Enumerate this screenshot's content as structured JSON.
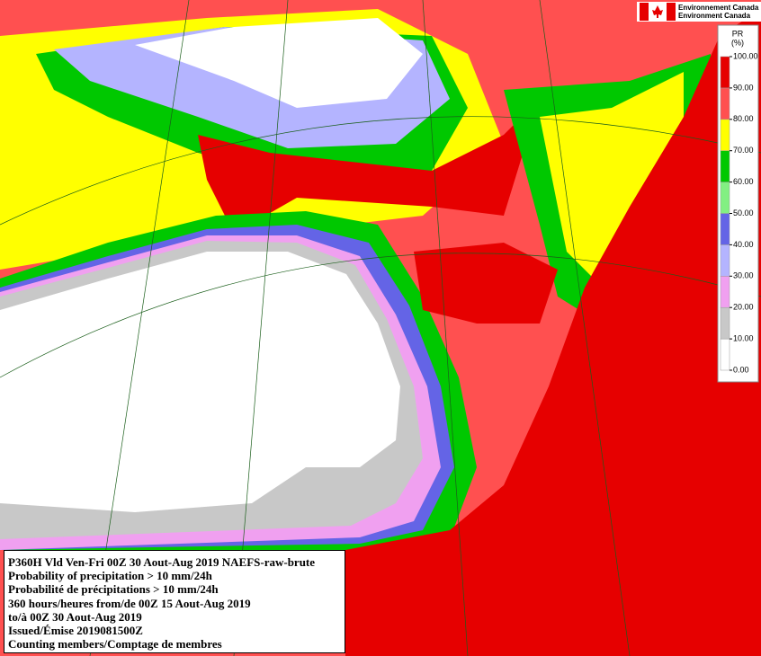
{
  "header": {
    "agency_fr": "Environnement Canada",
    "agency_en": "Environment Canada"
  },
  "legend": {
    "title": "PR",
    "unit": "(%)",
    "ticks": [
      {
        "value": 0,
        "label": "0.00"
      },
      {
        "value": 10,
        "label": "10.00"
      },
      {
        "value": 20,
        "label": "20.00"
      },
      {
        "value": 30,
        "label": "30.00"
      },
      {
        "value": 40,
        "label": "40.00"
      },
      {
        "value": 50,
        "label": "50.00"
      },
      {
        "value": 60,
        "label": "60.00"
      },
      {
        "value": 70,
        "label": "70.00"
      },
      {
        "value": 80,
        "label": "80.00"
      },
      {
        "value": 90,
        "label": "90.00"
      },
      {
        "value": 100,
        "label": "100.00"
      }
    ],
    "colors": [
      "#ffffff",
      "#c8c8c8",
      "#f0a0f0",
      "#b4b4ff",
      "#6464e6",
      "#82f082",
      "#00c800",
      "#ffff00",
      "#ff5050",
      "#e60000"
    ]
  },
  "info": {
    "lines": [
      "P360H Vld Ven-Fri 00Z 30 Aout-Aug 2019 NAEFS-raw-brute",
      "Probability of precipitation > 10 mm/24h",
      "Probabilité de précipitations > 10 mm/24h",
      "360 hours/heures from/de 00Z 15 Aout-Aug 2019",
      "to/à 00Z 30 Aout-Aug 2019",
      "Issued/Émise 2019081500Z",
      "Counting members/Comptage de membres"
    ]
  }
}
